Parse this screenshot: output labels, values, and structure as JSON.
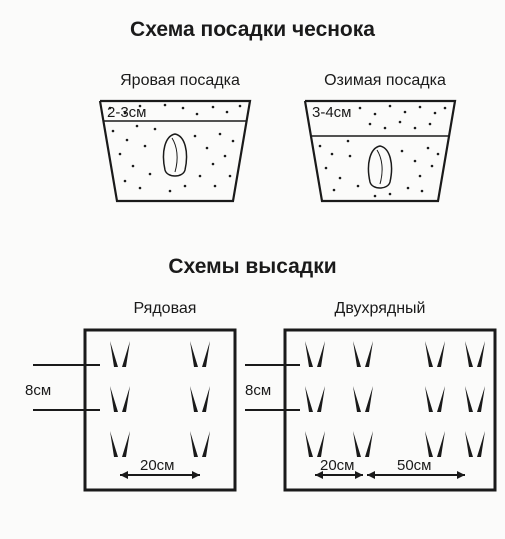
{
  "titles": {
    "main": "Схема посадки чеснока",
    "section2": "Схемы высадки"
  },
  "pots": {
    "left": {
      "label": "Яровая посадка",
      "depth": "2-3см"
    },
    "right": {
      "label": "Озимая посадка",
      "depth": "3-4см"
    }
  },
  "layouts": {
    "left": {
      "label": "Рядовая",
      "row_gap": "8см",
      "col_gap": "20см"
    },
    "right": {
      "label": "Двухрядный",
      "row_gap": "8см",
      "col_gap1": "20см",
      "col_gap2": "50см"
    }
  },
  "style": {
    "stroke": "#1a1a1a",
    "bg": "#fbfbfa",
    "title_fontsize": 21,
    "label_fontsize": 16,
    "small_fontsize": 15,
    "pot_stroke_width": 2.2,
    "box_stroke_width": 3,
    "plant_fill": "#1a1a1a"
  }
}
